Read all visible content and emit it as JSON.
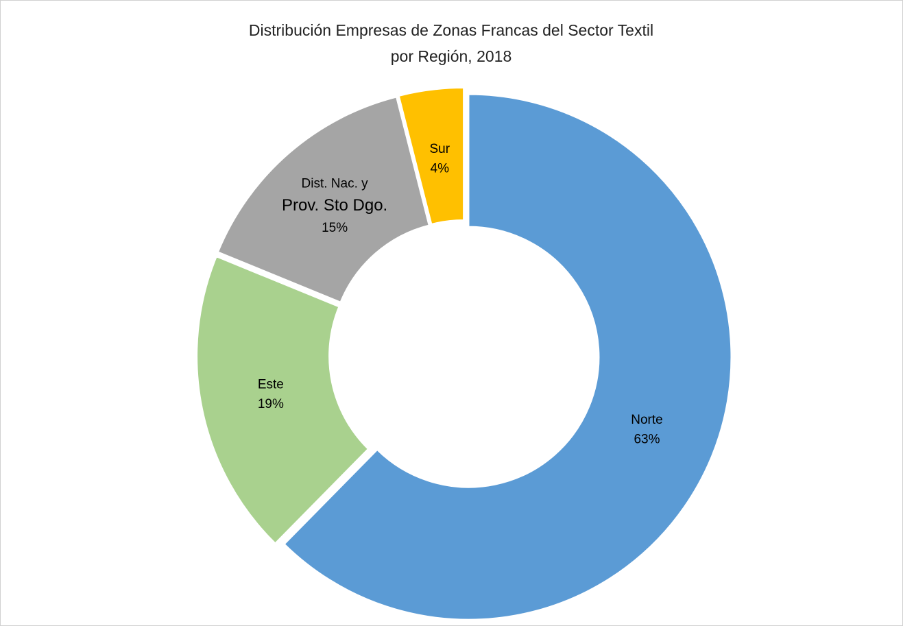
{
  "chart_data": {
    "type": "donut",
    "title": [
      "Distribución Empresas de Zonas Francas del Sector Textil",
      "por Región, 2018"
    ],
    "categories": [
      "Norte",
      "Este",
      [
        "Dist. Nac. y",
        "Prov. Sto Dgo."
      ],
      "Sur"
    ],
    "values": [
      63,
      19,
      15,
      4
    ],
    "value_labels": [
      "63%",
      "19%",
      "15%",
      "4%"
    ],
    "colors": [
      "#5b9bd5",
      "#a9d18e",
      "#a5a5a5",
      "#ffc000"
    ]
  }
}
